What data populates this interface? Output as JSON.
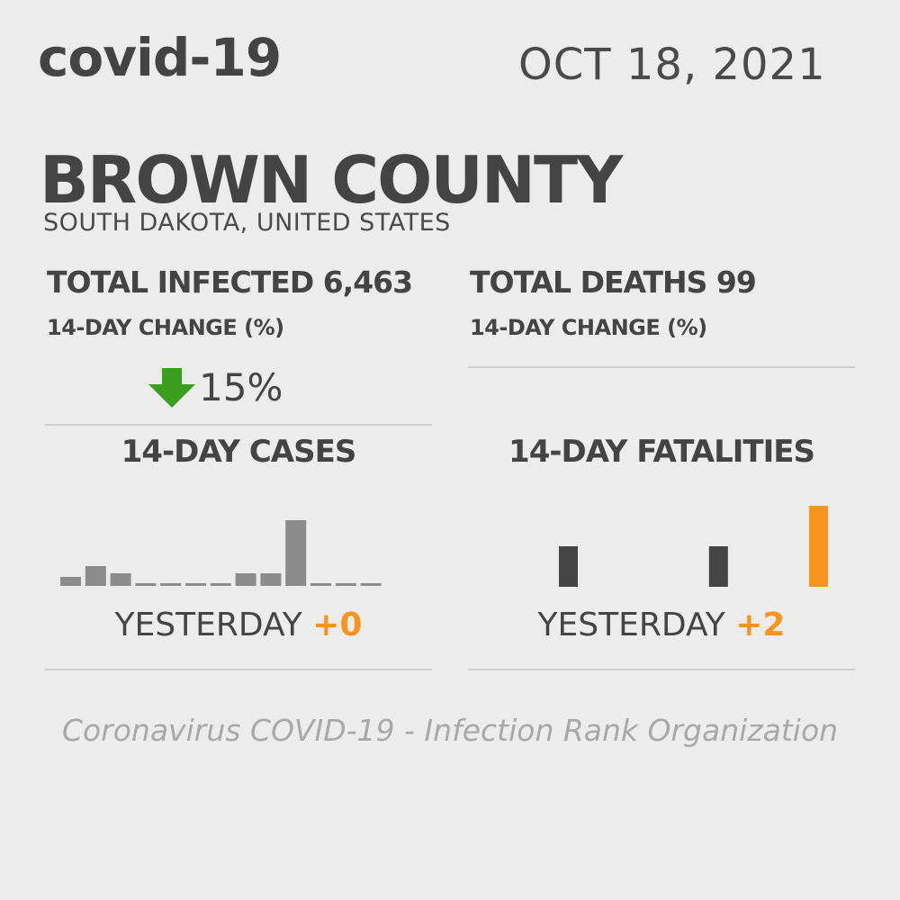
{
  "header": {
    "brand": "covid-19",
    "date": "OCT 18, 2021",
    "county": "BROWN COUNTY",
    "region": "SOUTH DAKOTA, UNITED STATES"
  },
  "infected": {
    "title": "TOTAL INFECTED 6,463",
    "change_label": "14-DAY CHANGE (%)",
    "change_value": "15%",
    "change_icon": "arrow-down-icon",
    "change_color": "#3a9e1e"
  },
  "deaths": {
    "title": "TOTAL DEATHS 99",
    "change_label": "14-DAY CHANGE (%)"
  },
  "cases_panel": {
    "title": "14-DAY CASES",
    "yesterday_label": "YESTERDAY",
    "yesterday_value": "+0"
  },
  "fatalities_panel": {
    "title": "14-DAY FATALITIES",
    "yesterday_label": "YESTERDAY",
    "yesterday_value": "+2"
  },
  "footer": {
    "text": "Coronavirus COVID-19 - Infection Rank Organization"
  },
  "colors": {
    "bar_gray": "#8c8c8c",
    "bar_dark": "#444444",
    "accent_orange": "#f7941d"
  },
  "chart_data": [
    {
      "type": "bar",
      "values": [
        10,
        22,
        14,
        3,
        3,
        3,
        3,
        14,
        14,
        73,
        3,
        3,
        3
      ],
      "ylim": [
        0,
        80
      ],
      "highlight_last": false
    },
    {
      "type": "bar",
      "values": [
        1,
        0,
        0,
        0,
        0,
        0,
        1,
        0,
        0,
        0,
        2
      ],
      "ylim": [
        0,
        2
      ],
      "highlight_last": true
    }
  ]
}
